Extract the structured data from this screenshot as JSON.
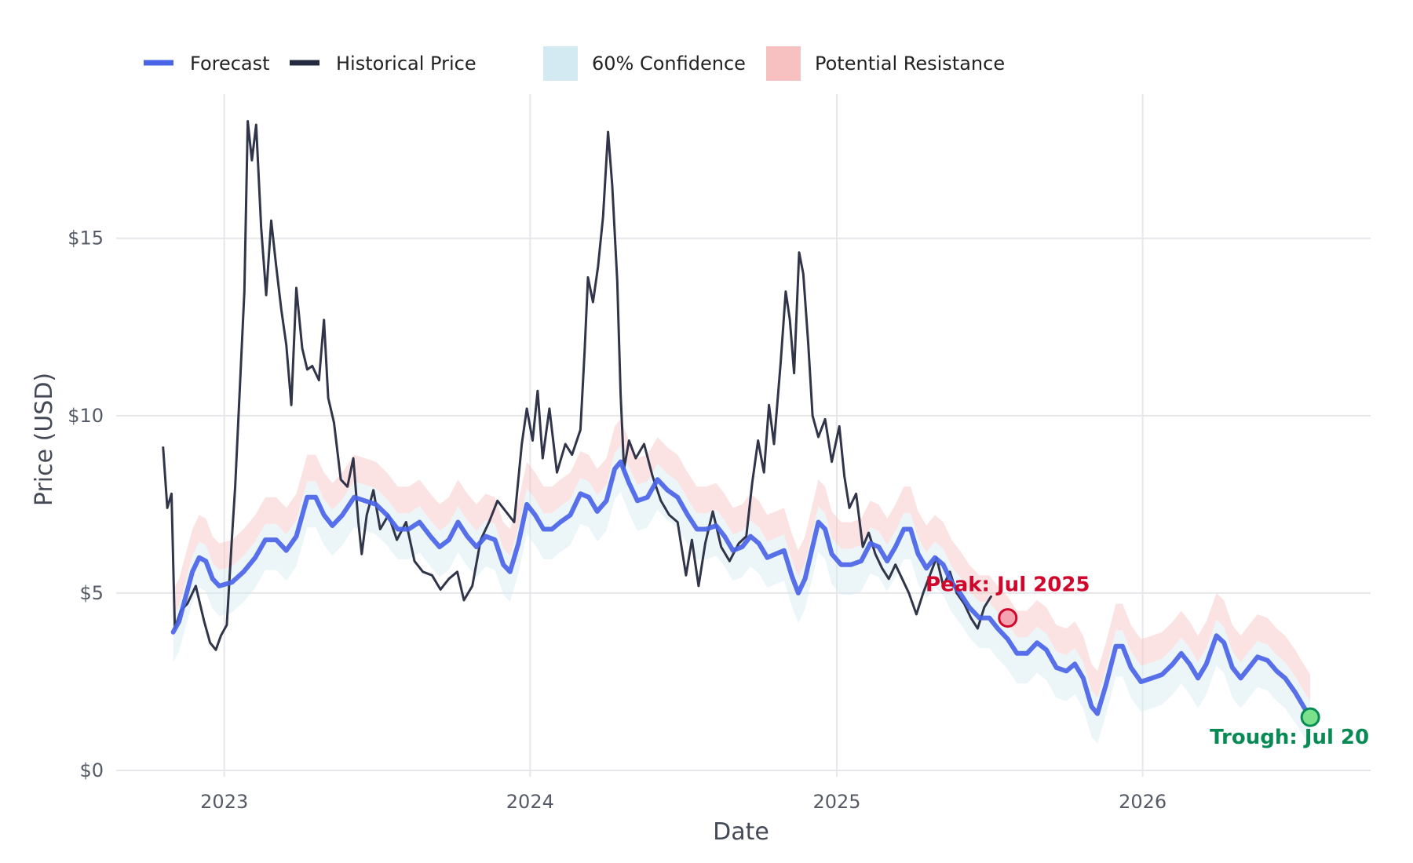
{
  "chart_data": {
    "type": "line",
    "xlabel": "Date",
    "ylabel": "Price (USD)",
    "ylim": [
      0,
      18.4
    ],
    "xlim": [
      "2022-08-25",
      "2026-09-30"
    ],
    "grid": true,
    "legend_position": "top-left",
    "x_ticks": [
      {
        "date": "2023-01-01",
        "label": "2023"
      },
      {
        "date": "2024-01-01",
        "label": "2024"
      },
      {
        "date": "2025-01-01",
        "label": "2025"
      },
      {
        "date": "2026-01-01",
        "label": "2026"
      }
    ],
    "y_ticks": [
      {
        "value": 0,
        "label": "$0"
      },
      {
        "value": 5,
        "label": "$5"
      },
      {
        "value": 10,
        "label": "$10"
      },
      {
        "value": 15,
        "label": "$15"
      }
    ],
    "legend": [
      {
        "label": "Forecast",
        "swatch": "line",
        "color": "#4a64e8"
      },
      {
        "label": "Historical Price",
        "swatch": "line",
        "color": "#262a40"
      },
      {
        "label": "60% Confidence",
        "swatch": "box",
        "color": "#d4eaf2"
      },
      {
        "label": "Potential Resistance",
        "swatch": "box",
        "color": "#f8c1c1"
      }
    ],
    "series": [
      {
        "name": "Historical Price",
        "color": "#262a40",
        "points": [
          [
            "2022-10-20",
            9.1
          ],
          [
            "2022-10-25",
            7.4
          ],
          [
            "2022-10-30",
            7.8
          ],
          [
            "2022-11-03",
            4.0
          ],
          [
            "2022-11-10",
            4.5
          ],
          [
            "2022-11-18",
            4.7
          ],
          [
            "2022-11-28",
            5.2
          ],
          [
            "2022-12-08",
            4.2
          ],
          [
            "2022-12-15",
            3.6
          ],
          [
            "2022-12-22",
            3.4
          ],
          [
            "2022-12-28",
            3.8
          ],
          [
            "2023-01-04",
            4.1
          ],
          [
            "2023-01-10",
            6.5
          ],
          [
            "2023-01-14",
            8.0
          ],
          [
            "2023-01-20",
            11.0
          ],
          [
            "2023-01-25",
            13.5
          ],
          [
            "2023-01-29",
            18.3
          ],
          [
            "2023-02-03",
            17.2
          ],
          [
            "2023-02-08",
            18.2
          ],
          [
            "2023-02-14",
            15.3
          ],
          [
            "2023-02-20",
            13.4
          ],
          [
            "2023-02-26",
            15.5
          ],
          [
            "2023-03-04",
            14.2
          ],
          [
            "2023-03-10",
            13.0
          ],
          [
            "2023-03-16",
            12.0
          ],
          [
            "2023-03-22",
            10.3
          ],
          [
            "2023-03-28",
            13.6
          ],
          [
            "2023-04-04",
            11.9
          ],
          [
            "2023-04-10",
            11.3
          ],
          [
            "2023-04-16",
            11.4
          ],
          [
            "2023-04-24",
            11.0
          ],
          [
            "2023-04-30",
            12.7
          ],
          [
            "2023-05-05",
            10.5
          ],
          [
            "2023-05-12",
            9.8
          ],
          [
            "2023-05-20",
            8.2
          ],
          [
            "2023-05-28",
            8.0
          ],
          [
            "2023-06-04",
            8.8
          ],
          [
            "2023-06-10",
            7.0
          ],
          [
            "2023-06-14",
            6.1
          ],
          [
            "2023-06-20",
            7.2
          ],
          [
            "2023-06-28",
            7.9
          ],
          [
            "2023-07-06",
            6.8
          ],
          [
            "2023-07-16",
            7.2
          ],
          [
            "2023-07-26",
            6.5
          ],
          [
            "2023-08-06",
            7.0
          ],
          [
            "2023-08-16",
            5.9
          ],
          [
            "2023-08-26",
            5.6
          ],
          [
            "2023-09-06",
            5.5
          ],
          [
            "2023-09-16",
            5.1
          ],
          [
            "2023-09-26",
            5.4
          ],
          [
            "2023-10-06",
            5.6
          ],
          [
            "2023-10-14",
            4.8
          ],
          [
            "2023-10-24",
            5.2
          ],
          [
            "2023-11-03",
            6.5
          ],
          [
            "2023-11-13",
            7.0
          ],
          [
            "2023-11-23",
            7.6
          ],
          [
            "2023-12-03",
            7.3
          ],
          [
            "2023-12-13",
            7.0
          ],
          [
            "2023-12-22",
            9.2
          ],
          [
            "2023-12-28",
            10.2
          ],
          [
            "2024-01-04",
            9.3
          ],
          [
            "2024-01-10",
            10.7
          ],
          [
            "2024-01-16",
            8.8
          ],
          [
            "2024-01-24",
            10.2
          ],
          [
            "2024-02-02",
            8.4
          ],
          [
            "2024-02-12",
            9.2
          ],
          [
            "2024-02-20",
            8.9
          ],
          [
            "2024-03-01",
            9.6
          ],
          [
            "2024-03-06",
            11.8
          ],
          [
            "2024-03-10",
            13.9
          ],
          [
            "2024-03-16",
            13.2
          ],
          [
            "2024-03-22",
            14.2
          ],
          [
            "2024-03-28",
            15.6
          ],
          [
            "2024-04-03",
            18.0
          ],
          [
            "2024-04-08",
            16.5
          ],
          [
            "2024-04-14",
            13.8
          ],
          [
            "2024-04-18",
            10.6
          ],
          [
            "2024-04-22",
            8.5
          ],
          [
            "2024-04-28",
            9.3
          ],
          [
            "2024-05-06",
            8.8
          ],
          [
            "2024-05-16",
            9.2
          ],
          [
            "2024-05-26",
            8.3
          ],
          [
            "2024-06-05",
            7.6
          ],
          [
            "2024-06-15",
            7.2
          ],
          [
            "2024-06-25",
            7.0
          ],
          [
            "2024-07-05",
            5.5
          ],
          [
            "2024-07-12",
            6.5
          ],
          [
            "2024-07-20",
            5.2
          ],
          [
            "2024-07-28",
            6.4
          ],
          [
            "2024-08-06",
            7.3
          ],
          [
            "2024-08-16",
            6.3
          ],
          [
            "2024-08-26",
            5.9
          ],
          [
            "2024-09-06",
            6.4
          ],
          [
            "2024-09-15",
            6.6
          ],
          [
            "2024-09-22",
            8.1
          ],
          [
            "2024-09-29",
            9.3
          ],
          [
            "2024-10-06",
            8.4
          ],
          [
            "2024-10-12",
            10.3
          ],
          [
            "2024-10-18",
            9.2
          ],
          [
            "2024-10-26",
            11.5
          ],
          [
            "2024-11-01",
            13.5
          ],
          [
            "2024-11-06",
            12.7
          ],
          [
            "2024-11-11",
            11.2
          ],
          [
            "2024-11-17",
            14.6
          ],
          [
            "2024-11-22",
            14.0
          ],
          [
            "2024-11-28",
            12.0
          ],
          [
            "2024-12-03",
            10.0
          ],
          [
            "2024-12-10",
            9.4
          ],
          [
            "2024-12-18",
            9.9
          ],
          [
            "2024-12-26",
            8.7
          ],
          [
            "2025-01-04",
            9.7
          ],
          [
            "2025-01-10",
            8.3
          ],
          [
            "2025-01-16",
            7.4
          ],
          [
            "2025-01-24",
            7.8
          ],
          [
            "2025-02-01",
            6.3
          ],
          [
            "2025-02-08",
            6.7
          ],
          [
            "2025-02-16",
            6.1
          ],
          [
            "2025-02-24",
            5.7
          ],
          [
            "2025-03-04",
            5.4
          ],
          [
            "2025-03-12",
            5.8
          ],
          [
            "2025-03-20",
            5.4
          ],
          [
            "2025-03-28",
            5.0
          ],
          [
            "2025-04-06",
            4.4
          ],
          [
            "2025-04-14",
            5.0
          ],
          [
            "2025-04-22",
            5.5
          ],
          [
            "2025-04-30",
            6.0
          ],
          [
            "2025-05-08",
            5.2
          ],
          [
            "2025-05-16",
            5.6
          ],
          [
            "2025-05-24",
            5.0
          ],
          [
            "2025-06-02",
            4.7
          ],
          [
            "2025-06-10",
            4.3
          ],
          [
            "2025-06-18",
            4.0
          ],
          [
            "2025-06-26",
            4.6
          ],
          [
            "2025-07-04",
            4.9
          ]
        ]
      },
      {
        "name": "Forecast",
        "color": "#4a64e8",
        "points": [
          [
            "2022-11-01",
            3.9
          ],
          [
            "2022-11-08",
            4.2
          ],
          [
            "2022-11-16",
            4.9
          ],
          [
            "2022-11-24",
            5.6
          ],
          [
            "2022-12-02",
            6.0
          ],
          [
            "2022-12-10",
            5.9
          ],
          [
            "2022-12-18",
            5.4
          ],
          [
            "2022-12-26",
            5.2
          ],
          [
            "2023-01-10",
            5.3
          ],
          [
            "2023-01-24",
            5.6
          ],
          [
            "2023-02-07",
            6.0
          ],
          [
            "2023-02-19",
            6.5
          ],
          [
            "2023-03-04",
            6.5
          ],
          [
            "2023-03-16",
            6.2
          ],
          [
            "2023-03-28",
            6.6
          ],
          [
            "2023-04-10",
            7.7
          ],
          [
            "2023-04-20",
            7.7
          ],
          [
            "2023-04-30",
            7.2
          ],
          [
            "2023-05-10",
            6.9
          ],
          [
            "2023-05-22",
            7.2
          ],
          [
            "2023-06-05",
            7.7
          ],
          [
            "2023-06-18",
            7.6
          ],
          [
            "2023-07-01",
            7.5
          ],
          [
            "2023-07-14",
            7.2
          ],
          [
            "2023-07-27",
            6.8
          ],
          [
            "2023-08-09",
            6.8
          ],
          [
            "2023-08-22",
            7.0
          ],
          [
            "2023-09-04",
            6.6
          ],
          [
            "2023-09-15",
            6.3
          ],
          [
            "2023-09-26",
            6.5
          ],
          [
            "2023-10-07",
            7.0
          ],
          [
            "2023-10-18",
            6.6
          ],
          [
            "2023-10-29",
            6.3
          ],
          [
            "2023-11-09",
            6.6
          ],
          [
            "2023-11-20",
            6.5
          ],
          [
            "2023-11-30",
            5.8
          ],
          [
            "2023-12-08",
            5.6
          ],
          [
            "2023-12-18",
            6.4
          ],
          [
            "2023-12-28",
            7.5
          ],
          [
            "2024-01-07",
            7.2
          ],
          [
            "2024-01-17",
            6.8
          ],
          [
            "2024-01-27",
            6.8
          ],
          [
            "2024-02-06",
            7.0
          ],
          [
            "2024-02-18",
            7.2
          ],
          [
            "2024-03-01",
            7.8
          ],
          [
            "2024-03-11",
            7.7
          ],
          [
            "2024-03-21",
            7.3
          ],
          [
            "2024-04-01",
            7.6
          ],
          [
            "2024-04-11",
            8.5
          ],
          [
            "2024-04-18",
            8.7
          ],
          [
            "2024-04-28",
            8.1
          ],
          [
            "2024-05-08",
            7.6
          ],
          [
            "2024-05-20",
            7.7
          ],
          [
            "2024-06-01",
            8.2
          ],
          [
            "2024-06-13",
            7.9
          ],
          [
            "2024-06-25",
            7.7
          ],
          [
            "2024-07-07",
            7.2
          ],
          [
            "2024-07-18",
            6.8
          ],
          [
            "2024-07-29",
            6.8
          ],
          [
            "2024-08-10",
            6.9
          ],
          [
            "2024-08-20",
            6.6
          ],
          [
            "2024-08-30",
            6.2
          ],
          [
            "2024-09-10",
            6.3
          ],
          [
            "2024-09-20",
            6.6
          ],
          [
            "2024-09-30",
            6.4
          ],
          [
            "2024-10-10",
            6.0
          ],
          [
            "2024-10-20",
            6.1
          ],
          [
            "2024-10-30",
            6.2
          ],
          [
            "2024-11-08",
            5.5
          ],
          [
            "2024-11-16",
            5.0
          ],
          [
            "2024-11-24",
            5.4
          ],
          [
            "2024-12-02",
            6.2
          ],
          [
            "2024-12-10",
            7.0
          ],
          [
            "2024-12-18",
            6.8
          ],
          [
            "2024-12-26",
            6.1
          ],
          [
            "2025-01-06",
            5.8
          ],
          [
            "2025-01-18",
            5.8
          ],
          [
            "2025-01-30",
            5.9
          ],
          [
            "2025-02-10",
            6.4
          ],
          [
            "2025-02-20",
            6.3
          ],
          [
            "2025-03-02",
            5.9
          ],
          [
            "2025-03-12",
            6.3
          ],
          [
            "2025-03-22",
            6.8
          ],
          [
            "2025-03-30",
            6.8
          ],
          [
            "2025-04-08",
            6.1
          ],
          [
            "2025-04-18",
            5.7
          ],
          [
            "2025-04-28",
            6.0
          ],
          [
            "2025-05-08",
            5.8
          ],
          [
            "2025-05-18",
            5.3
          ],
          [
            "2025-05-28",
            5.0
          ],
          [
            "2025-06-08",
            4.6
          ],
          [
            "2025-06-20",
            4.3
          ],
          [
            "2025-07-02",
            4.3
          ],
          [
            "2025-07-12",
            4.0
          ],
          [
            "2025-07-24",
            3.7
          ],
          [
            "2025-08-04",
            3.3
          ],
          [
            "2025-08-16",
            3.3
          ],
          [
            "2025-08-28",
            3.6
          ],
          [
            "2025-09-08",
            3.4
          ],
          [
            "2025-09-20",
            2.9
          ],
          [
            "2025-10-02",
            2.8
          ],
          [
            "2025-10-12",
            3.0
          ],
          [
            "2025-10-22",
            2.6
          ],
          [
            "2025-11-01",
            1.8
          ],
          [
            "2025-11-08",
            1.6
          ],
          [
            "2025-11-18",
            2.4
          ],
          [
            "2025-11-30",
            3.5
          ],
          [
            "2025-12-08",
            3.5
          ],
          [
            "2025-12-18",
            2.9
          ],
          [
            "2025-12-30",
            2.5
          ],
          [
            "2026-01-12",
            2.6
          ],
          [
            "2026-01-24",
            2.7
          ],
          [
            "2026-02-06",
            3.0
          ],
          [
            "2026-02-16",
            3.3
          ],
          [
            "2026-02-26",
            3.0
          ],
          [
            "2026-03-08",
            2.6
          ],
          [
            "2026-03-18",
            3.0
          ],
          [
            "2026-03-30",
            3.8
          ],
          [
            "2026-04-08",
            3.6
          ],
          [
            "2026-04-18",
            2.9
          ],
          [
            "2026-04-28",
            2.6
          ],
          [
            "2026-05-08",
            2.9
          ],
          [
            "2026-05-18",
            3.2
          ],
          [
            "2026-05-30",
            3.1
          ],
          [
            "2026-06-10",
            2.8
          ],
          [
            "2026-06-20",
            2.6
          ],
          [
            "2026-07-02",
            2.2
          ],
          [
            "2026-07-12",
            1.8
          ],
          [
            "2026-07-20",
            1.5
          ]
        ]
      }
    ],
    "bands": [
      {
        "name": "60% Confidence",
        "color": "#d4eaf2",
        "opacity": 0.45,
        "lower_offset": -0.85,
        "upper_offset": 0.45,
        "relative_to": "Forecast"
      },
      {
        "name": "Potential Resistance",
        "color": "#f8c1c1",
        "opacity": 0.45,
        "lower_offset": 0.45,
        "upper_offset": 1.2,
        "relative_to": "Forecast"
      }
    ],
    "annotations": [
      {
        "label": "Peak: Jul 2025",
        "x": "2025-07-24",
        "y": 4.3,
        "color": "#d1062b",
        "marker_fill": "#f5a3b0"
      },
      {
        "label": "Trough: Jul 20",
        "x": "2026-07-20",
        "y": 1.5,
        "color": "#088a55",
        "marker_fill": "#7be08c"
      }
    ]
  }
}
